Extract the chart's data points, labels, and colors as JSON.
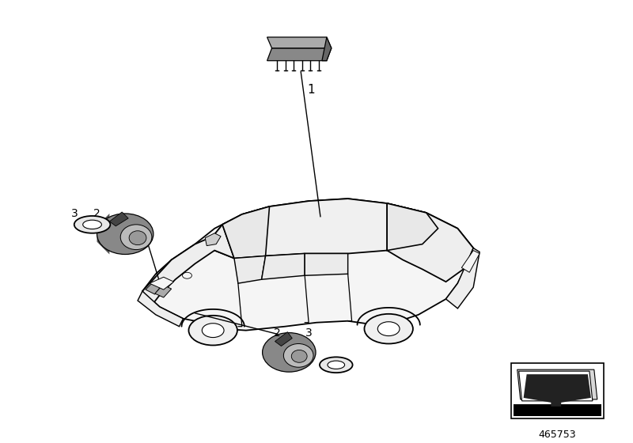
{
  "background_color": "#ffffff",
  "line_color": "#000000",
  "gray_light": "#d0d0d0",
  "gray_medium": "#999999",
  "gray_dark": "#555555",
  "gray_body": "#bbbbbb",
  "part_number": "465753",
  "labels": {
    "item1": "1",
    "item2_left": "2",
    "item3_left": "3",
    "item2_bottom": "2",
    "item3_bottom": "3"
  },
  "car": {
    "ox": 400,
    "oy": 300,
    "scale": 1.0
  }
}
